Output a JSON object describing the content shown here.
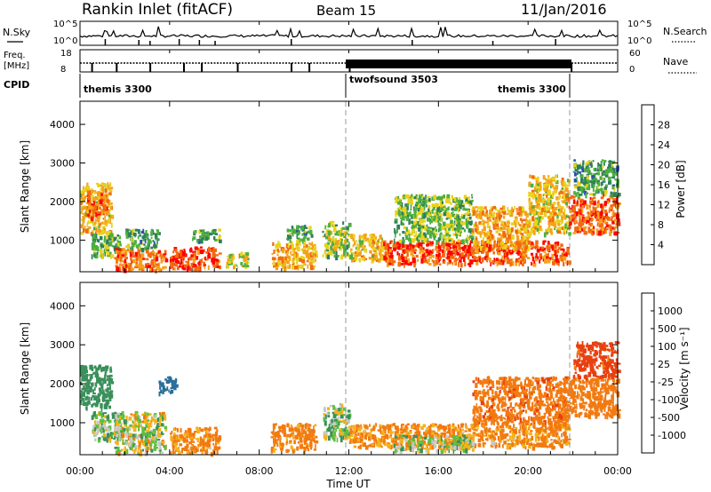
{
  "header": {
    "station": "Rankin Inlet (fitACF)",
    "beam": "Beam 15",
    "date": "11/Jan/2016"
  },
  "noise_panel": {
    "left_label": "N.Sky",
    "right_label": "N.Search",
    "left_ticks": [
      "10^5",
      "10^0"
    ],
    "right_ticks": [
      "10^5",
      "10^0"
    ]
  },
  "freq_panel": {
    "left_label_1": "Freq.",
    "left_label_2": "[MHz]",
    "right_label": "Nave",
    "left_ticks": [
      "18",
      "8"
    ],
    "right_ticks": [
      "60",
      "0"
    ]
  },
  "cpid_panel": {
    "label": "CPID",
    "segments": [
      {
        "name": "themis 3300",
        "start_hour": 0,
        "end_hour": 12
      },
      {
        "name": "twofsound 3503",
        "start_hour": 12,
        "end_hour": 21.85
      },
      {
        "name": "themis 3300",
        "start_hour": 21.85,
        "end_hour": 24
      }
    ],
    "label_texts": [
      "themis 3300",
      "twofsound 3503",
      "themis 3300"
    ]
  },
  "time_axis": {
    "label": "Time UT",
    "ticks": [
      "00:00",
      "04:00",
      "08:00",
      "12:00",
      "16:00",
      "20:00",
      "00:00"
    ]
  },
  "power_panel": {
    "ylabel": "Slant Range [km]",
    "yticks": [
      "1000",
      "2000",
      "3000",
      "4000"
    ],
    "colorbar_label": "Power [dB]",
    "colorbar_ticks": [
      "4",
      "8",
      "12",
      "16",
      "20",
      "24",
      "28"
    ]
  },
  "velocity_panel": {
    "ylabel": "Slant Range [km]",
    "yticks": [
      "1000",
      "2000",
      "3000",
      "4000"
    ],
    "colorbar_label": "Velocity [m s⁻¹]",
    "colorbar_ticks": [
      "1000",
      "500",
      "100",
      "25",
      "-25",
      "-100",
      "-500",
      "-1000"
    ]
  },
  "chart_data": [
    {
      "type": "heatmap",
      "title": "Power",
      "xlabel": "Time UT",
      "ylabel": "Slant Range [km]",
      "xlim": [
        0,
        24
      ],
      "ylim": [
        180,
        4600
      ],
      "colorbar": {
        "label": "Power [dB]",
        "range": [
          0,
          32
        ],
        "ticks": [
          4,
          8,
          12,
          16,
          20,
          24,
          28
        ],
        "colors": [
          "#0000ff",
          "#2a4fb0",
          "#2f7f5a",
          "#4caf3f",
          "#e8d21e",
          "#f5a21a",
          "#f26a10",
          "#ff0000"
        ]
      },
      "regions": [
        {
          "t": [
            0.0,
            1.4
          ],
          "range_km": [
            1200,
            2500
          ],
          "value": 20
        },
        {
          "t": [
            0.3,
            1.2
          ],
          "range_km": [
            1600,
            2300
          ],
          "value": 26
        },
        {
          "t": [
            0.5,
            1.8
          ],
          "range_km": [
            600,
            1200
          ],
          "value": 14
        },
        {
          "t": [
            1.5,
            3.8
          ],
          "range_km": [
            250,
            800
          ],
          "value": 25
        },
        {
          "t": [
            2.0,
            3.5
          ],
          "range_km": [
            800,
            1300
          ],
          "value": 12
        },
        {
          "t": [
            4.0,
            6.2
          ],
          "range_km": [
            250,
            850
          ],
          "value": 28
        },
        {
          "t": [
            5.0,
            6.2
          ],
          "range_km": [
            1000,
            1300
          ],
          "value": 12
        },
        {
          "t": [
            6.5,
            7.5
          ],
          "range_km": [
            300,
            700
          ],
          "value": 18
        },
        {
          "t": [
            8.5,
            10.5
          ],
          "range_km": [
            300,
            1000
          ],
          "value": 22
        },
        {
          "t": [
            9.2,
            10.3
          ],
          "range_km": [
            1000,
            1400
          ],
          "value": 12
        },
        {
          "t": [
            10.8,
            12.0
          ],
          "range_km": [
            600,
            1500
          ],
          "value": 16
        },
        {
          "t": [
            12.0,
            13.5
          ],
          "range_km": [
            500,
            1200
          ],
          "value": 20
        },
        {
          "t": [
            13.5,
            21.8
          ],
          "range_km": [
            400,
            1000
          ],
          "value": 27
        },
        {
          "t": [
            14.0,
            17.5
          ],
          "range_km": [
            1000,
            2200
          ],
          "value": 15
        },
        {
          "t": [
            17.5,
            20.0
          ],
          "range_km": [
            800,
            1900
          ],
          "value": 22
        },
        {
          "t": [
            20.0,
            21.8
          ],
          "range_km": [
            1200,
            2700
          ],
          "value": 20
        },
        {
          "t": [
            21.8,
            24.0
          ],
          "range_km": [
            1200,
            2200
          ],
          "value": 26
        },
        {
          "t": [
            22.0,
            24.0
          ],
          "range_km": [
            2200,
            3100
          ],
          "value": 12
        }
      ]
    },
    {
      "type": "heatmap",
      "title": "Velocity",
      "xlabel": "Time UT",
      "ylabel": "Slant Range [km]",
      "xlim": [
        0,
        24
      ],
      "ylim": [
        180,
        4600
      ],
      "colorbar": {
        "label": "Velocity [m s⁻¹]",
        "ticks": [
          1000,
          500,
          100,
          25,
          -25,
          -100,
          -500,
          -1000
        ],
        "colors": [
          "#1f3fb0",
          "#2a6f9a",
          "#3a8f5a",
          "#5cc040",
          "#c8c8c8",
          "#f5b21a",
          "#f27a10",
          "#e84010",
          "#ff0000"
        ]
      },
      "regions": [
        {
          "t": [
            0.0,
            1.4
          ],
          "range_km": [
            1400,
            2500
          ],
          "value": 300
        },
        {
          "t": [
            0.5,
            2.0
          ],
          "range_km": [
            600,
            1300
          ],
          "value": 50
        },
        {
          "t": [
            1.5,
            3.8
          ],
          "range_km": [
            250,
            1300
          ],
          "value": 0
        },
        {
          "t": [
            3.5,
            4.3
          ],
          "range_km": [
            1800,
            2200
          ],
          "value": 800
        },
        {
          "t": [
            4.0,
            6.2
          ],
          "range_km": [
            250,
            900
          ],
          "value": -150
        },
        {
          "t": [
            8.5,
            10.5
          ],
          "range_km": [
            300,
            1000
          ],
          "value": -200
        },
        {
          "t": [
            10.8,
            12.0
          ],
          "range_km": [
            600,
            1500
          ],
          "value": 40
        },
        {
          "t": [
            12.0,
            21.8
          ],
          "range_km": [
            400,
            1000
          ],
          "value": -150
        },
        {
          "t": [
            14.0,
            17.5
          ],
          "range_km": [
            300,
            700
          ],
          "value": 20
        },
        {
          "t": [
            17.5,
            21.8
          ],
          "range_km": [
            1000,
            2200
          ],
          "value": -400
        },
        {
          "t": [
            21.8,
            24.0
          ],
          "range_km": [
            1200,
            2200
          ],
          "value": -300
        },
        {
          "t": [
            22.0,
            24.0
          ],
          "range_km": [
            2200,
            3100
          ],
          "value": -600
        }
      ]
    }
  ]
}
